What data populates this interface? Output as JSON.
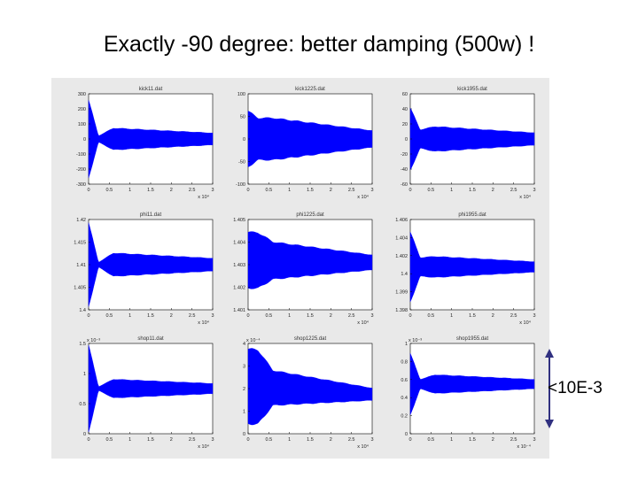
{
  "slide": {
    "title": "Exactly -90 degree: better damping (500w) !",
    "annotation": "<10E-3"
  },
  "colors": {
    "signal": "#0000ff",
    "axis": "#000000",
    "panel_bg": "#e9e9e9",
    "arrow": "#303080"
  },
  "chart_data": [
    {
      "type": "line",
      "title": "kick11.dat",
      "xlim": [
        0,
        3
      ],
      "xticks": [
        "0",
        "0.5",
        "1",
        "1.5",
        "2",
        "2.5",
        "3"
      ],
      "x_exponent": "x 10⁴",
      "ylim": [
        -300,
        300
      ],
      "yticks": [
        "-300",
        "-200",
        "-100",
        "0",
        "100",
        "200",
        "300"
      ],
      "envelope": {
        "center": 0,
        "start_amp": 250,
        "dip_amp": 20,
        "settle_amp": 70,
        "decay_to": 0.55
      }
    },
    {
      "type": "line",
      "title": "kick1225.dat",
      "xlim": [
        0,
        3
      ],
      "xticks": [
        "0",
        "0.5",
        "1",
        "1.5",
        "2",
        "2.5",
        "3"
      ],
      "x_exponent": "x 10⁴",
      "ylim": [
        -100,
        100
      ],
      "yticks": [
        "-100",
        "-50",
        "0",
        "50",
        "100"
      ],
      "envelope": {
        "center": 0,
        "start_amp": 60,
        "dip_amp": 45,
        "settle_amp": 45,
        "decay_to": 0.4
      }
    },
    {
      "type": "line",
      "title": "kick1955.dat",
      "xlim": [
        0,
        3
      ],
      "xticks": [
        "0",
        "0.5",
        "1",
        "1.5",
        "2",
        "2.5",
        "3"
      ],
      "x_exponent": "x 10⁴",
      "ylim": [
        -60,
        60
      ],
      "yticks": [
        "-60",
        "-40",
        "-20",
        "0",
        "20",
        "40",
        "60"
      ],
      "envelope": {
        "center": 0,
        "start_amp": 40,
        "dip_amp": 12,
        "settle_amp": 16,
        "decay_to": 0.5
      }
    },
    {
      "type": "line",
      "title": "phi11.dat",
      "xlim": [
        0,
        3
      ],
      "xticks": [
        "0",
        "0.5",
        "1",
        "1.5",
        "2",
        "2.5",
        "3"
      ],
      "x_exponent": "x 10⁴",
      "ylim": [
        1.4,
        1.42
      ],
      "yticks": [
        "1.4",
        "1.405",
        "1.41",
        "1.415",
        "1.42"
      ],
      "envelope": {
        "center": 1.41,
        "start_amp": 0.009,
        "dip_amp": 0.0005,
        "settle_amp": 0.0025,
        "decay_to": 0.55
      }
    },
    {
      "type": "line",
      "title": "phi1225.dat",
      "xlim": [
        0,
        3
      ],
      "xticks": [
        "0",
        "0.5",
        "1",
        "1.5",
        "2",
        "2.5",
        "3"
      ],
      "x_exponent": "x 10⁴",
      "ylim": [
        1.401,
        1.405
      ],
      "yticks": [
        "1.401",
        "1.402",
        "1.403",
        "1.404",
        "1.405"
      ],
      "envelope": {
        "center": 1.4032,
        "start_amp": 0.0012,
        "dip_amp": 0.0012,
        "settle_amp": 0.0008,
        "decay_to": 0.4,
        "center_end": 1.4031
      }
    },
    {
      "type": "line",
      "title": "phi1955.dat",
      "xlim": [
        0,
        3
      ],
      "xticks": [
        "0",
        "0.5",
        "1",
        "1.5",
        "2",
        "2.5",
        "3"
      ],
      "x_exponent": "x 10⁴",
      "ylim": [
        1.398,
        1.406
      ],
      "yticks": [
        "1.398",
        "1.399",
        "1.4",
        "1.402",
        "1.404",
        "1.406"
      ],
      "envelope": {
        "center": 1.4018,
        "start_amp": 0.003,
        "dip_amp": 0.0008,
        "settle_amp": 0.0009,
        "decay_to": 0.5
      }
    },
    {
      "type": "line",
      "title": "shop11.dat",
      "xlim": [
        0,
        3
      ],
      "xticks": [
        "0",
        "0.5",
        "1",
        "1.5",
        "2",
        "2.5",
        "3"
      ],
      "x_exponent": "x 10⁴",
      "y_exponent": "x 10⁻³",
      "ylim": [
        0,
        1.5
      ],
      "yticks": [
        "0",
        "0.5",
        "1",
        "1.5"
      ],
      "envelope": {
        "center": 0.75,
        "start_amp": 0.7,
        "dip_amp": 0.03,
        "settle_amp": 0.15,
        "decay_to": 0.55
      }
    },
    {
      "type": "line",
      "title": "shop1225.dat",
      "xlim": [
        0,
        3
      ],
      "xticks": [
        "0",
        "0.5",
        "1",
        "1.5",
        "2",
        "2.5",
        "3"
      ],
      "x_exponent": "x 10⁴",
      "y_exponent": "x 10⁻⁴",
      "ylim": [
        0,
        4
      ],
      "yticks": [
        "0",
        "1",
        "2",
        "3",
        "4"
      ],
      "envelope": {
        "center": 2.1,
        "start_amp": 1.6,
        "dip_amp": 1.6,
        "settle_amp": 0.75,
        "decay_to": 0.35,
        "center_end": 1.75
      }
    },
    {
      "type": "line",
      "title": "shop1955.dat",
      "xlim": [
        0,
        3
      ],
      "xticks": [
        "0",
        "0.5",
        "1",
        "1.5",
        "2",
        "2.5",
        "3"
      ],
      "x_exponent": "x 10⁻⁴",
      "y_exponent": "x 10⁻³",
      "ylim": [
        0,
        1
      ],
      "yticks": [
        "0",
        "0.2",
        "0.4",
        "0.6",
        "0.8",
        "1"
      ],
      "envelope": {
        "center": 0.55,
        "start_amp": 0.33,
        "dip_amp": 0.05,
        "settle_amp": 0.1,
        "decay_to": 0.5
      }
    }
  ]
}
